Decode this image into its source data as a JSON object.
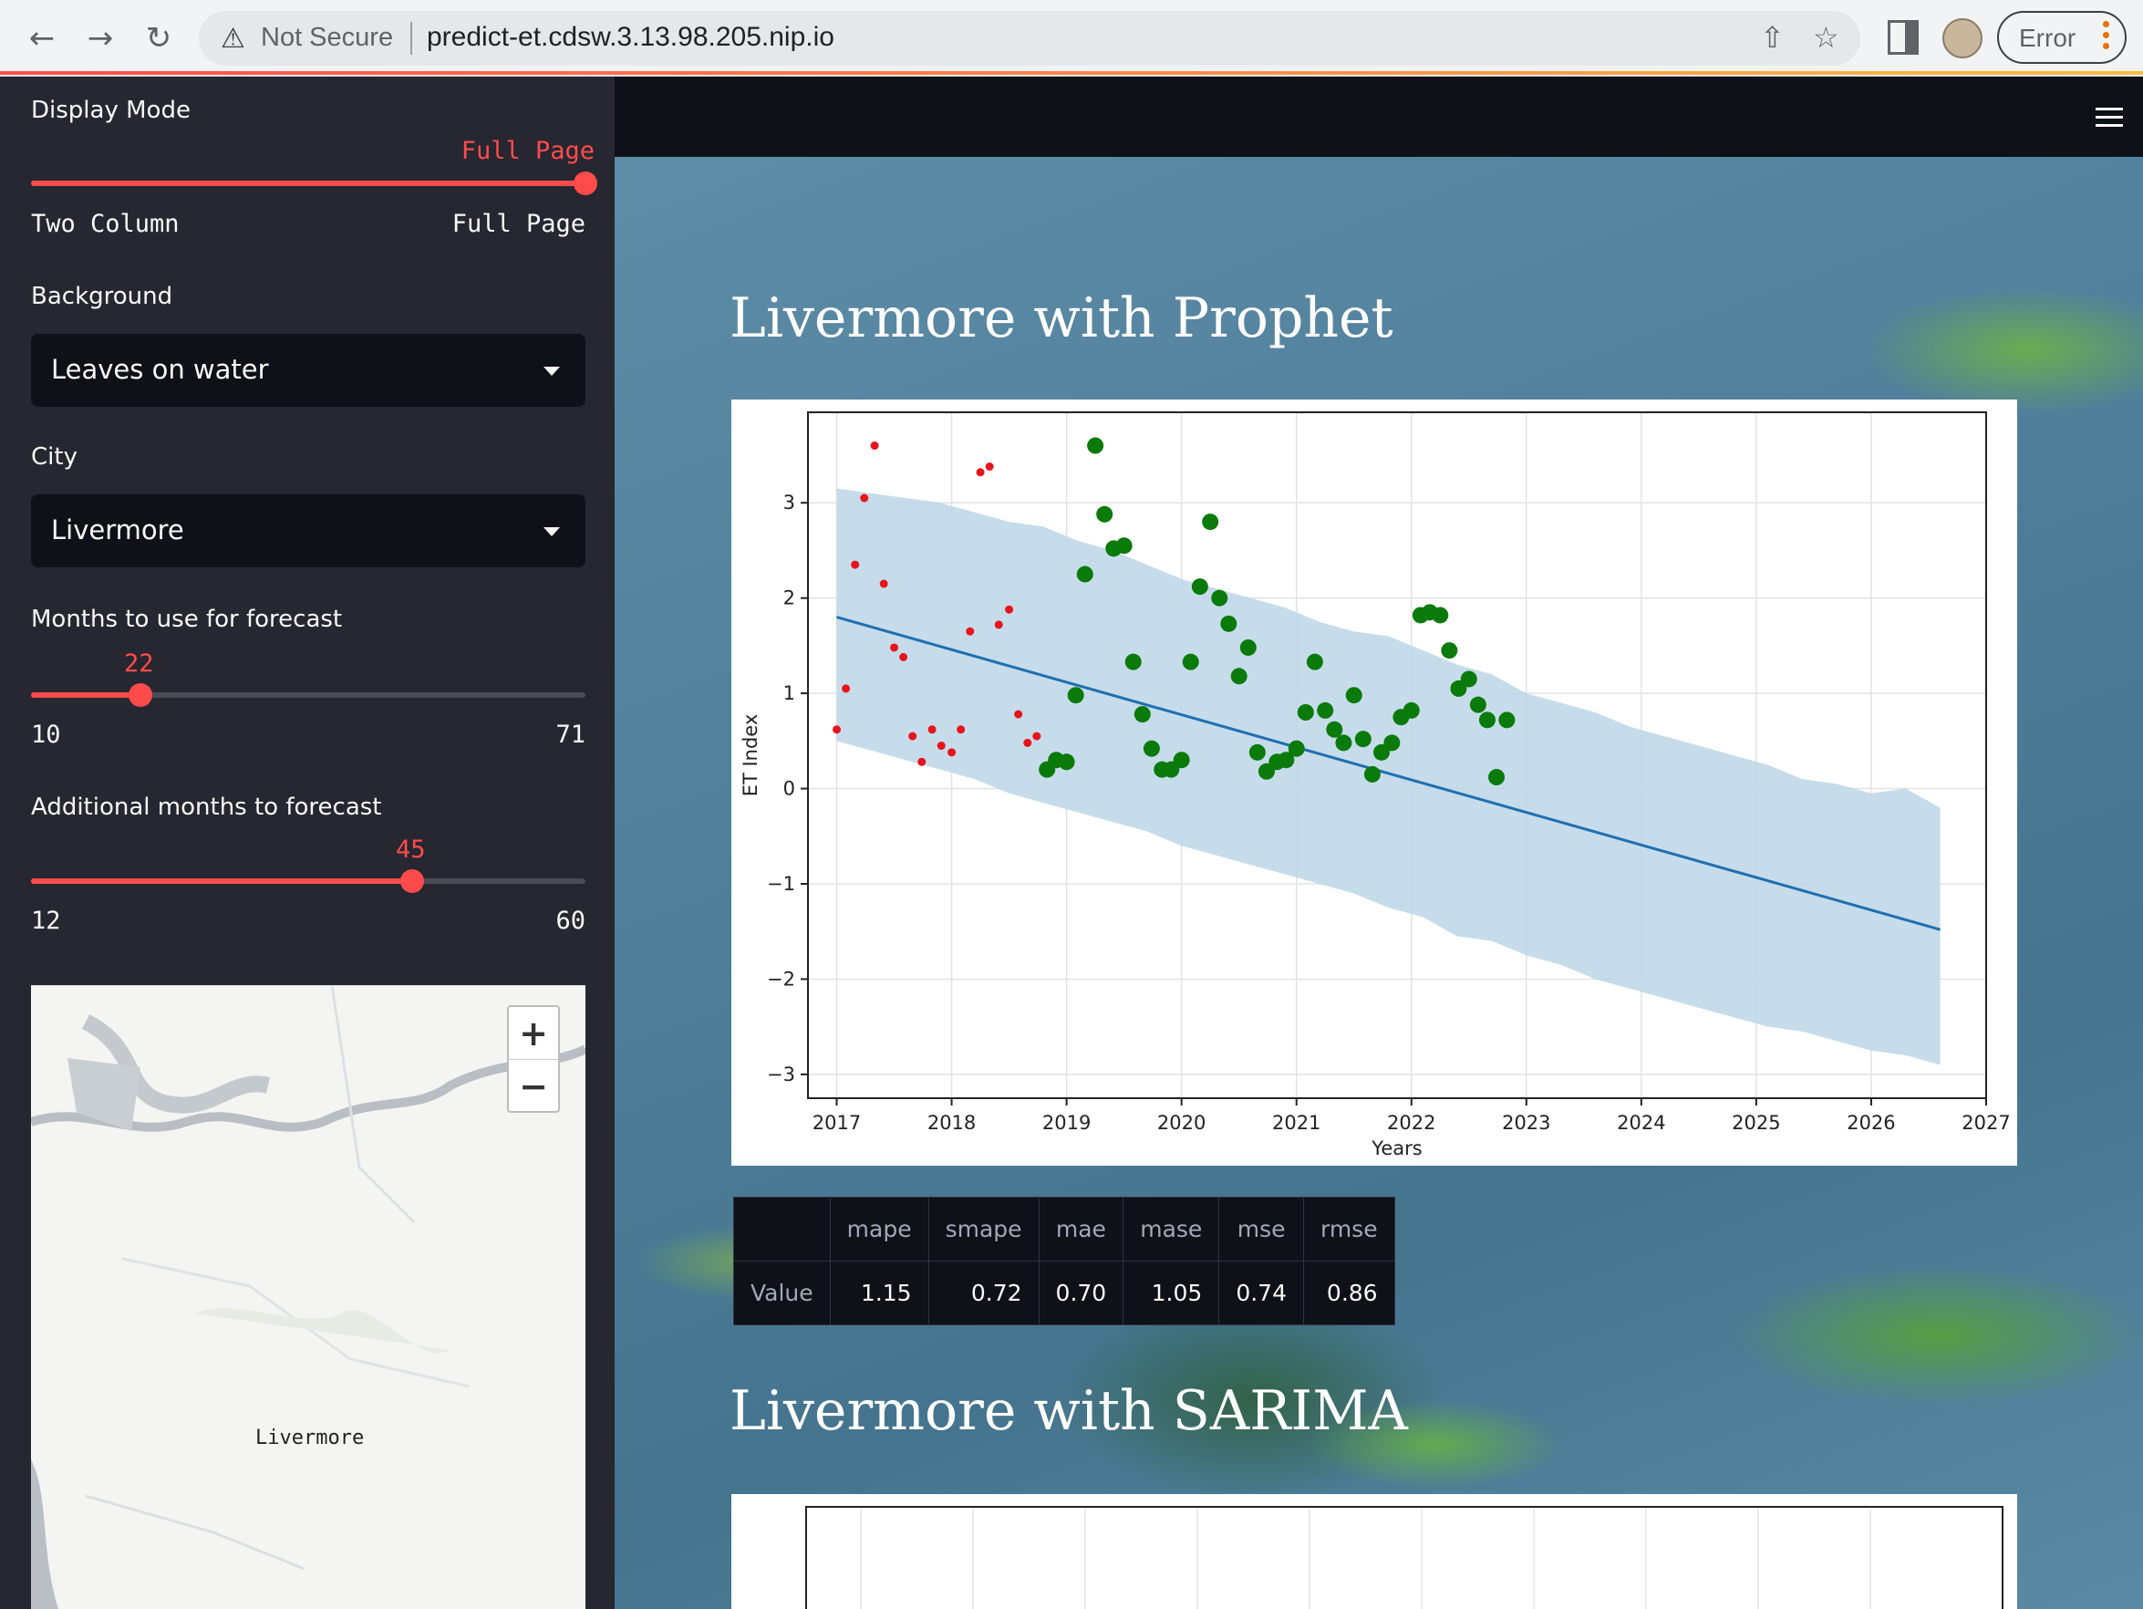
{
  "browser": {
    "security_label": "Not Secure",
    "url": "predict-et.cdsw.3.13.98.205.nip.io",
    "profile_button_label": "Error"
  },
  "sidebar": {
    "display_mode": {
      "label": "Display Mode",
      "value_label": "Full Page",
      "min_label": "Two Column",
      "max_label": "Full Page",
      "position": 1.0
    },
    "background": {
      "label": "Background",
      "selected": "Leaves on water"
    },
    "city": {
      "label": "City",
      "selected": "Livermore"
    },
    "months_forecast": {
      "label": "Months to use for forecast",
      "value": 22,
      "min": 10,
      "max": 71
    },
    "additional_months": {
      "label": "Additional months to forecast",
      "value": 45,
      "min": 12,
      "max": 60
    },
    "map": {
      "zoom_in": "+",
      "zoom_out": "−",
      "place_label": "Livermore"
    }
  },
  "main": {
    "prophet_title": "Livermore with Prophet",
    "sarima_title": "Livermore with SARIMA",
    "metrics": {
      "headers": [
        "",
        "mape",
        "smape",
        "mae",
        "mase",
        "mse",
        "rmse"
      ],
      "row_label": "Value",
      "values": [
        "1.15",
        "0.72",
        "0.70",
        "1.05",
        "0.74",
        "0.86"
      ]
    }
  },
  "chart_data": {
    "type": "scatter",
    "xlabel": "Years",
    "ylabel": "ET Index",
    "xlim": [
      2016.75,
      2027.0
    ],
    "ylim": [
      -3.25,
      3.95
    ],
    "xticks": [
      2017,
      2018,
      2019,
      2020,
      2021,
      2022,
      2023,
      2024,
      2025,
      2026,
      2027
    ],
    "yticks": [
      -3,
      -2,
      -1,
      0,
      1,
      2,
      3
    ],
    "grid": true,
    "colors": {
      "train": "#e8141c",
      "test": "#0a7a0a",
      "trend": "#1f6fb0",
      "band": "#bcd6e8"
    },
    "trend": {
      "x": [
        2017.0,
        2026.6
      ],
      "y": [
        1.8,
        -1.48
      ]
    },
    "band_upper": [
      [
        2017.0,
        3.15
      ],
      [
        2017.3,
        3.1
      ],
      [
        2017.6,
        3.05
      ],
      [
        2017.9,
        3.0
      ],
      [
        2018.2,
        2.9
      ],
      [
        2018.5,
        2.8
      ],
      [
        2018.8,
        2.75
      ],
      [
        2019.1,
        2.6
      ],
      [
        2019.4,
        2.5
      ],
      [
        2019.7,
        2.35
      ],
      [
        2020.0,
        2.2
      ],
      [
        2020.3,
        2.1
      ],
      [
        2020.6,
        2.0
      ],
      [
        2020.9,
        1.9
      ],
      [
        2021.2,
        1.75
      ],
      [
        2021.5,
        1.65
      ],
      [
        2021.8,
        1.6
      ],
      [
        2022.1,
        1.45
      ],
      [
        2022.4,
        1.3
      ],
      [
        2022.7,
        1.2
      ],
      [
        2023.0,
        1.0
      ],
      [
        2023.3,
        0.9
      ],
      [
        2023.6,
        0.8
      ],
      [
        2023.9,
        0.65
      ],
      [
        2024.2,
        0.55
      ],
      [
        2024.5,
        0.45
      ],
      [
        2024.8,
        0.35
      ],
      [
        2025.1,
        0.25
      ],
      [
        2025.4,
        0.1
      ],
      [
        2025.7,
        0.05
      ],
      [
        2026.0,
        -0.05
      ],
      [
        2026.3,
        0.0
      ],
      [
        2026.6,
        -0.2
      ]
    ],
    "band_lower": [
      [
        2017.0,
        0.5
      ],
      [
        2017.3,
        0.4
      ],
      [
        2017.6,
        0.3
      ],
      [
        2017.9,
        0.2
      ],
      [
        2018.2,
        0.1
      ],
      [
        2018.5,
        -0.05
      ],
      [
        2018.8,
        -0.15
      ],
      [
        2019.1,
        -0.25
      ],
      [
        2019.4,
        -0.35
      ],
      [
        2019.7,
        -0.45
      ],
      [
        2020.0,
        -0.6
      ],
      [
        2020.3,
        -0.7
      ],
      [
        2020.6,
        -0.8
      ],
      [
        2020.9,
        -0.9
      ],
      [
        2021.2,
        -1.0
      ],
      [
        2021.5,
        -1.1
      ],
      [
        2021.8,
        -1.25
      ],
      [
        2022.1,
        -1.35
      ],
      [
        2022.4,
        -1.55
      ],
      [
        2022.7,
        -1.6
      ],
      [
        2023.0,
        -1.75
      ],
      [
        2023.3,
        -1.85
      ],
      [
        2023.6,
        -2.0
      ],
      [
        2023.9,
        -2.1
      ],
      [
        2024.2,
        -2.2
      ],
      [
        2024.5,
        -2.3
      ],
      [
        2024.8,
        -2.4
      ],
      [
        2025.1,
        -2.5
      ],
      [
        2025.4,
        -2.55
      ],
      [
        2025.7,
        -2.65
      ],
      [
        2026.0,
        -2.75
      ],
      [
        2026.3,
        -2.8
      ],
      [
        2026.6,
        -2.9
      ]
    ],
    "series": [
      {
        "role": "train",
        "x": [
          2017.0,
          2017.08,
          2017.16,
          2017.24,
          2017.33,
          2017.41,
          2017.5,
          2017.58,
          2017.66,
          2017.74,
          2017.83,
          2017.91,
          2018.0,
          2018.08,
          2018.16,
          2018.25,
          2018.33,
          2018.41,
          2018.5,
          2018.58,
          2018.66,
          2018.74
        ],
        "y": [
          0.62,
          1.05,
          2.35,
          3.05,
          3.6,
          2.15,
          1.48,
          1.38,
          0.55,
          0.28,
          0.62,
          0.45,
          0.38,
          0.62,
          1.65,
          3.32,
          3.38,
          1.72,
          1.88,
          0.78,
          0.48,
          0.55
        ]
      },
      {
        "role": "test",
        "x": [
          2018.83,
          2018.91,
          2019.0,
          2019.08,
          2019.16,
          2019.25,
          2019.33,
          2019.41,
          2019.5,
          2019.58,
          2019.66,
          2019.74,
          2019.83,
          2019.91,
          2020.0,
          2020.08,
          2020.16,
          2020.25,
          2020.33,
          2020.41,
          2020.5,
          2020.58,
          2020.66,
          2020.74,
          2020.83,
          2020.91,
          2021.0,
          2021.08,
          2021.16,
          2021.25,
          2021.33,
          2021.41,
          2021.5,
          2021.58,
          2021.66,
          2021.74,
          2021.83,
          2021.91,
          2022.0,
          2022.08,
          2022.16,
          2022.25,
          2022.33,
          2022.41,
          2022.5,
          2022.58,
          2022.66,
          2022.74,
          2022.83
        ],
        "y": [
          0.2,
          0.3,
          0.28,
          0.98,
          2.25,
          3.6,
          2.88,
          2.52,
          2.55,
          1.33,
          0.78,
          0.42,
          0.2,
          0.2,
          0.3,
          1.33,
          2.12,
          2.8,
          2.0,
          1.73,
          1.18,
          1.48,
          0.38,
          0.18,
          0.28,
          0.3,
          0.42,
          0.8,
          1.33,
          0.82,
          0.62,
          0.48,
          0.98,
          0.52,
          0.15,
          0.38,
          0.48,
          0.75,
          0.82,
          1.82,
          1.85,
          1.82,
          1.45,
          1.05,
          1.15,
          0.88,
          0.72,
          0.12,
          0.72
        ]
      }
    ]
  }
}
